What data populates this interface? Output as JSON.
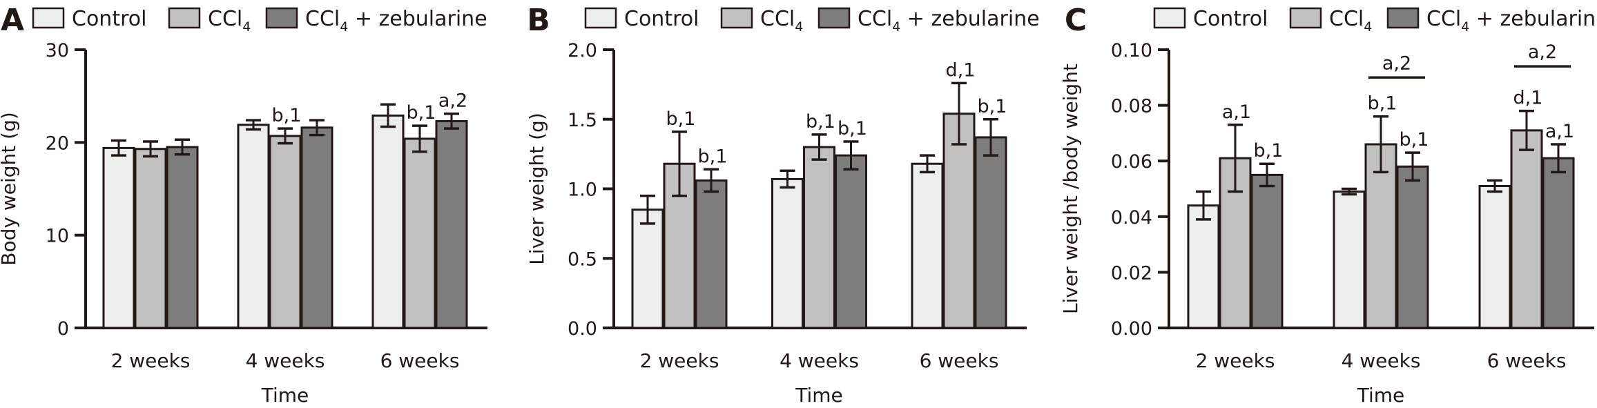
{
  "figure": {
    "legend": {
      "entries": [
        {
          "key": "control",
          "label": "Control",
          "sub": "",
          "suffix": "",
          "color": "#eceeed"
        },
        {
          "key": "ccl4",
          "label": "CCl",
          "sub": "4",
          "suffix": "",
          "color": "#c0c1c0"
        },
        {
          "key": "zeb",
          "label": "CCl",
          "sub": "4",
          "suffix": " + zebularine",
          "color": "#7d7d7d"
        }
      ]
    },
    "stroke_color": "#231815"
  },
  "chart_data": [
    {
      "panel": "A",
      "type": "bar",
      "title": "",
      "xlabel": "Time",
      "ylabel": "Body weight (g)",
      "ylim": [
        0,
        30
      ],
      "yticks": [
        0,
        10,
        20,
        30
      ],
      "ytick_labels": [
        "0",
        "10",
        "20",
        "30"
      ],
      "categories": [
        "2 weeks",
        "4 weeks",
        "6 weeks"
      ],
      "legend_position": "top",
      "grid": false,
      "series": [
        {
          "name": "Control",
          "values": [
            19.4,
            21.9,
            22.9
          ],
          "errors": [
            0.8,
            0.5,
            1.2
          ],
          "annotations": [
            "",
            "",
            ""
          ]
        },
        {
          "name": "CCl4",
          "values": [
            19.3,
            20.7,
            20.4
          ],
          "errors": [
            0.8,
            0.8,
            1.4
          ],
          "annotations": [
            "",
            "b,1",
            "b,1"
          ]
        },
        {
          "name": "CCl4 + zebularine",
          "values": [
            19.5,
            21.6,
            22.3
          ],
          "errors": [
            0.8,
            0.8,
            0.8
          ],
          "annotations": [
            "",
            "",
            "a,2"
          ]
        }
      ],
      "group_annotations": []
    },
    {
      "panel": "B",
      "type": "bar",
      "title": "",
      "xlabel": "Time",
      "ylabel": "Liver weight (g)",
      "ylim": [
        0,
        2.0
      ],
      "yticks": [
        0,
        0.5,
        1.0,
        1.5,
        2.0
      ],
      "ytick_labels": [
        "0.0",
        "0.5",
        "1.0",
        "1.5",
        "2.0"
      ],
      "categories": [
        "2 weeks",
        "4 weeks",
        "6 weeks"
      ],
      "legend_position": "top",
      "grid": false,
      "series": [
        {
          "name": "Control",
          "values": [
            0.85,
            1.07,
            1.18
          ],
          "errors": [
            0.1,
            0.06,
            0.06
          ],
          "annotations": [
            "",
            "",
            ""
          ]
        },
        {
          "name": "CCl4",
          "values": [
            1.18,
            1.3,
            1.54
          ],
          "errors": [
            0.23,
            0.09,
            0.22
          ],
          "annotations": [
            "b,1",
            "b,1",
            "d,1"
          ]
        },
        {
          "name": "CCl4 + zebularine",
          "values": [
            1.06,
            1.24,
            1.37
          ],
          "errors": [
            0.08,
            0.1,
            0.13
          ],
          "annotations": [
            "b,1",
            "b,1",
            "b,1"
          ]
        }
      ],
      "group_annotations": []
    },
    {
      "panel": "C",
      "type": "bar",
      "title": "",
      "xlabel": "Time",
      "ylabel": "Liver weight /body weight",
      "ylim": [
        0,
        0.1
      ],
      "yticks": [
        0,
        0.02,
        0.04,
        0.06,
        0.08,
        0.1
      ],
      "ytick_labels": [
        "0.00",
        "0.02",
        "0.04",
        "0.06",
        "0.08",
        "0.10"
      ],
      "categories": [
        "2 weeks",
        "4 weeks",
        "6 weeks"
      ],
      "legend_position": "top",
      "grid": false,
      "series": [
        {
          "name": "Control",
          "values": [
            0.044,
            0.049,
            0.051
          ],
          "errors": [
            0.005,
            0.001,
            0.002
          ],
          "annotations": [
            "",
            "",
            ""
          ]
        },
        {
          "name": "CCl4",
          "values": [
            0.061,
            0.066,
            0.071
          ],
          "errors": [
            0.012,
            0.01,
            0.007
          ],
          "annotations": [
            "a,1",
            "b,1",
            "d,1"
          ]
        },
        {
          "name": "CCl4 + zebularine",
          "values": [
            0.055,
            0.058,
            0.061
          ],
          "errors": [
            0.004,
            0.005,
            0.005
          ],
          "annotations": [
            "b,1",
            "b,1",
            "a,1"
          ]
        }
      ],
      "group_annotations": [
        {
          "category": 1,
          "from_series": 1,
          "to_series": 2,
          "label": "a,2",
          "level": 0.09
        },
        {
          "category": 2,
          "from_series": 1,
          "to_series": 2,
          "label": "a,2",
          "level": 0.094
        }
      ]
    }
  ]
}
